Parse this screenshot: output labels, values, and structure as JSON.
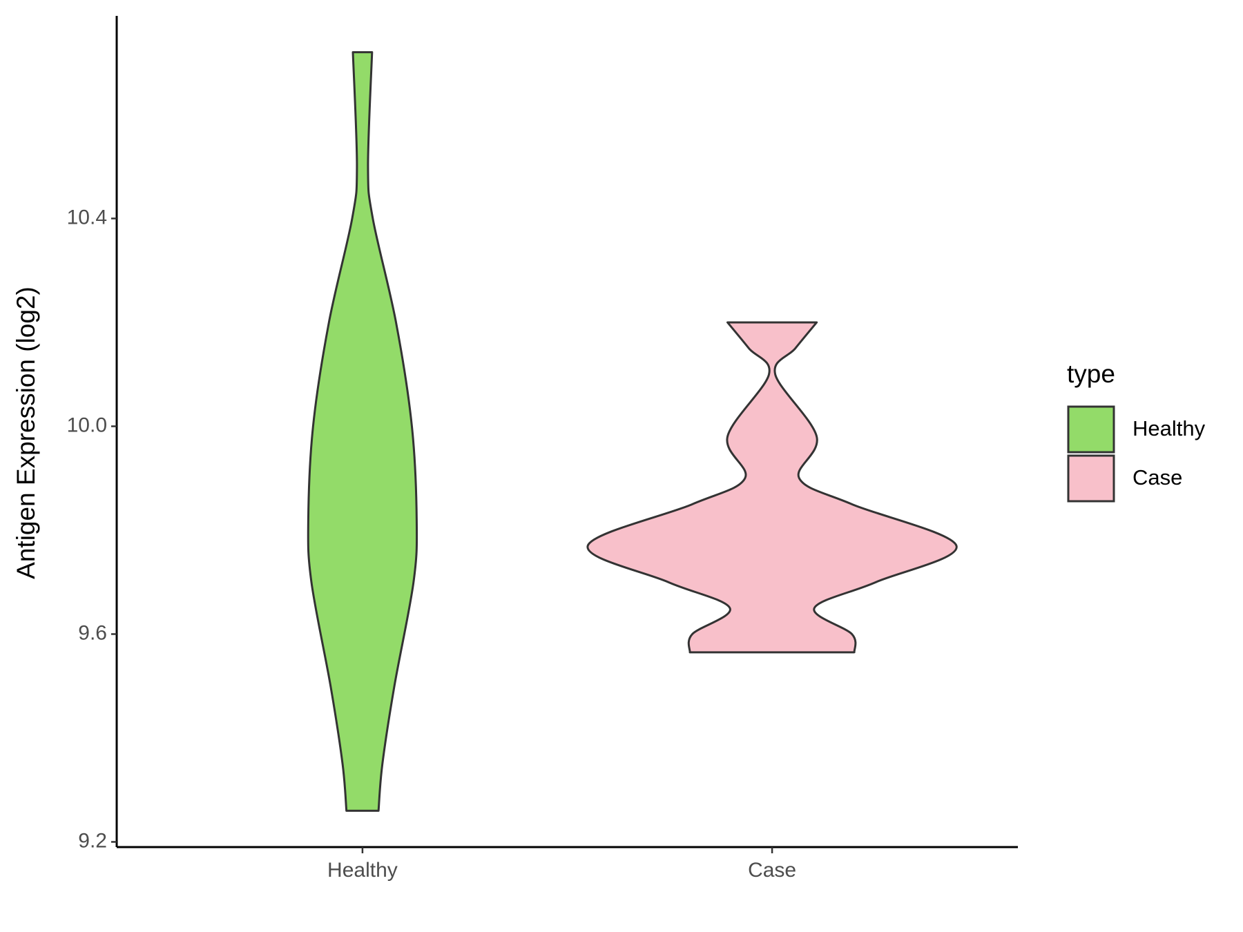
{
  "chart_data": {
    "type": "violin",
    "y_label": "Antigen Expression (log2)",
    "categories": [
      "Healthy",
      "Case"
    ],
    "legend_title": "type",
    "legend": "right",
    "series": [
      {
        "name": "Healthy",
        "color": "#93db69",
        "y": [
          9.26,
          9.35,
          9.5,
          9.7,
          9.82,
          10.0,
          10.2,
          10.4,
          10.5,
          10.72
        ],
        "width": [
          0.087,
          0.108,
          0.173,
          0.277,
          0.294,
          0.268,
          0.182,
          0.056,
          0.03,
          0.052
        ]
      },
      {
        "name": "Case",
        "color": "#f8c0ca",
        "y": [
          9.565,
          9.6,
          9.65,
          9.7,
          9.77,
          9.85,
          9.9,
          9.98,
          10.1,
          10.15,
          10.2
        ],
        "width": [
          0.446,
          0.433,
          0.229,
          0.563,
          1.0,
          0.433,
          0.147,
          0.242,
          0.017,
          0.126,
          0.242
        ]
      }
    ],
    "ylim": [
      9.19,
      10.79
    ],
    "yticks": [
      9.2,
      9.6,
      {
        "value": 10,
        "label": "10.0"
      },
      10.4
    ]
  }
}
